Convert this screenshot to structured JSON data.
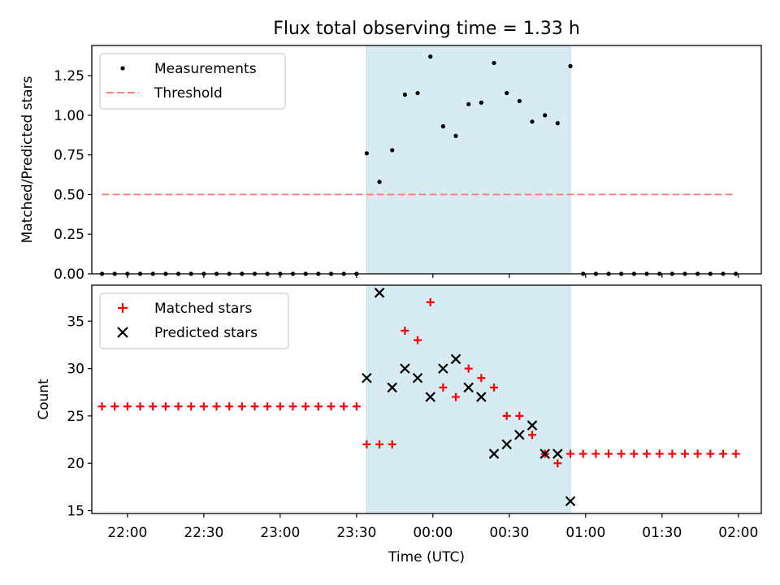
{
  "figure_title": "Flux total observing time = 1.33 h",
  "colors": {
    "measurement": "#000000",
    "threshold": "#ff7f7f",
    "matched": "#ff0000",
    "predicted": "#000000",
    "span_fill": "#add8e6"
  },
  "chart_data": [
    {
      "type": "scatter",
      "ylabel": "Matched/Predicted stars",
      "xlabel": "",
      "xlim": [
        "21:46",
        "02:09"
      ],
      "ylim": [
        0,
        1.44
      ],
      "yticks": [
        0.0,
        0.25,
        0.5,
        0.75,
        1.0,
        1.25
      ],
      "ytick_labels": [
        "0.00",
        "0.25",
        "0.50",
        "0.75",
        "1.00",
        "1.25"
      ],
      "legend_loc": "upper-left",
      "legend": [
        "Measurements",
        "Threshold"
      ],
      "highlight_span": [
        "23:34",
        "00:54"
      ],
      "series": [
        {
          "name": "Measurements",
          "marker": "dot",
          "x": [
            "21:50",
            "21:55",
            "22:00",
            "22:05",
            "22:10",
            "22:15",
            "22:20",
            "22:25",
            "22:30",
            "22:35",
            "22:40",
            "22:45",
            "22:50",
            "22:55",
            "23:00",
            "23:05",
            "23:10",
            "23:15",
            "23:20",
            "23:25",
            "23:30",
            "23:34",
            "23:39",
            "23:44",
            "23:49",
            "23:54",
            "23:59",
            "00:04",
            "00:09",
            "00:14",
            "00:19",
            "00:24",
            "00:29",
            "00:34",
            "00:39",
            "00:44",
            "00:49",
            "00:54",
            "00:59",
            "01:04",
            "01:09",
            "01:14",
            "01:19",
            "01:24",
            "01:29",
            "01:34",
            "01:39",
            "01:44",
            "01:49",
            "01:54",
            "01:59"
          ],
          "y": [
            0,
            0,
            0,
            0,
            0,
            0,
            0,
            0,
            0,
            0,
            0,
            0,
            0,
            0,
            0,
            0,
            0,
            0,
            0,
            0,
            0,
            0.76,
            0.58,
            0.78,
            1.13,
            1.14,
            1.37,
            0.93,
            0.87,
            1.07,
            1.08,
            1.33,
            1.14,
            1.09,
            0.96,
            1.0,
            0.95,
            1.31,
            0,
            0,
            0,
            0,
            0,
            0,
            0,
            0,
            0,
            0,
            0,
            0,
            0
          ]
        },
        {
          "name": "Threshold",
          "marker": "dashed-line",
          "x": [
            "21:50",
            "01:59"
          ],
          "y": [
            0.5,
            0.5
          ]
        }
      ]
    },
    {
      "type": "scatter",
      "ylabel": "Count",
      "xlabel": "Time (UTC)",
      "xlim": [
        "21:46",
        "02:09"
      ],
      "ylim": [
        14.7,
        38.8
      ],
      "yticks": [
        15,
        20,
        25,
        30,
        35
      ],
      "ytick_labels": [
        "15",
        "20",
        "25",
        "30",
        "35"
      ],
      "xticks": [
        "22:00",
        "22:30",
        "23:00",
        "23:30",
        "00:00",
        "00:30",
        "01:00",
        "01:30",
        "02:00"
      ],
      "legend_loc": "upper-left",
      "legend": [
        "Matched stars",
        "Predicted stars"
      ],
      "highlight_span": [
        "23:34",
        "00:54"
      ],
      "series": [
        {
          "name": "Matched stars",
          "marker": "plus",
          "x": [
            "21:50",
            "21:55",
            "22:00",
            "22:05",
            "22:10",
            "22:15",
            "22:20",
            "22:25",
            "22:30",
            "22:35",
            "22:40",
            "22:45",
            "22:50",
            "22:55",
            "23:00",
            "23:05",
            "23:10",
            "23:15",
            "23:20",
            "23:25",
            "23:30",
            "23:34",
            "23:39",
            "23:44",
            "23:49",
            "23:54",
            "23:59",
            "00:04",
            "00:09",
            "00:14",
            "00:19",
            "00:24",
            "00:29",
            "00:34",
            "00:39",
            "00:44",
            "00:49",
            "00:54",
            "00:59",
            "01:04",
            "01:09",
            "01:14",
            "01:19",
            "01:24",
            "01:29",
            "01:34",
            "01:39",
            "01:44",
            "01:49",
            "01:54",
            "01:59"
          ],
          "y": [
            26,
            26,
            26,
            26,
            26,
            26,
            26,
            26,
            26,
            26,
            26,
            26,
            26,
            26,
            26,
            26,
            26,
            26,
            26,
            26,
            26,
            22,
            22,
            22,
            34,
            33,
            37,
            28,
            27,
            30,
            29,
            28,
            25,
            25,
            23,
            21,
            20,
            21,
            21,
            21,
            21,
            21,
            21,
            21,
            21,
            21,
            21,
            21,
            21,
            21,
            21
          ]
        },
        {
          "name": "Predicted stars",
          "marker": "x",
          "x": [
            "23:34",
            "23:39",
            "23:44",
            "23:49",
            "23:54",
            "23:59",
            "00:04",
            "00:09",
            "00:14",
            "00:19",
            "00:24",
            "00:29",
            "00:34",
            "00:39",
            "00:44",
            "00:49",
            "00:54"
          ],
          "y": [
            29,
            38,
            28,
            30,
            29,
            27,
            30,
            31,
            28,
            27,
            21,
            22,
            23,
            24,
            21,
            21,
            16
          ]
        }
      ]
    }
  ]
}
